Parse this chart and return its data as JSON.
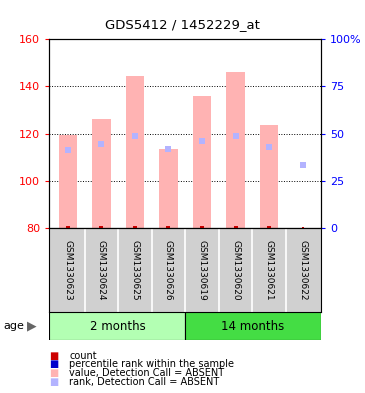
{
  "title": "GDS5412 / 1452229_at",
  "samples": [
    "GSM1330623",
    "GSM1330624",
    "GSM1330625",
    "GSM1330626",
    "GSM1330619",
    "GSM1330620",
    "GSM1330621",
    "GSM1330622"
  ],
  "value_absent": [
    119.5,
    126.0,
    144.5,
    113.5,
    136.0,
    146.0,
    123.5,
    null
  ],
  "rank_absent_left": [
    113.0,
    115.5,
    119.0,
    113.5,
    117.0,
    119.0,
    114.5,
    106.5
  ],
  "ylim": [
    80,
    160
  ],
  "y2lim": [
    0,
    100
  ],
  "yticks": [
    80,
    100,
    120,
    140,
    160
  ],
  "y2ticks": [
    0,
    25,
    50,
    75,
    100
  ],
  "y2ticklabels": [
    "0",
    "25",
    "50",
    "75",
    "100%"
  ],
  "bar_color_absent": "#ffb3b3",
  "rank_color_absent": "#b3b3ff",
  "count_color": "#cc0000",
  "rank_perc_color": "#0000cc",
  "group1_color": "#b3ffb3",
  "group2_color": "#44dd44",
  "legend_items": [
    {
      "label": "count",
      "color": "#cc0000"
    },
    {
      "label": "percentile rank within the sample",
      "color": "#0000cc"
    },
    {
      "label": "value, Detection Call = ABSENT",
      "color": "#ffb3b3"
    },
    {
      "label": "rank, Detection Call = ABSENT",
      "color": "#b3b3ff"
    }
  ],
  "group_divider": 3.5,
  "group1_label": "2 months",
  "group2_label": "14 months",
  "age_label": "age"
}
